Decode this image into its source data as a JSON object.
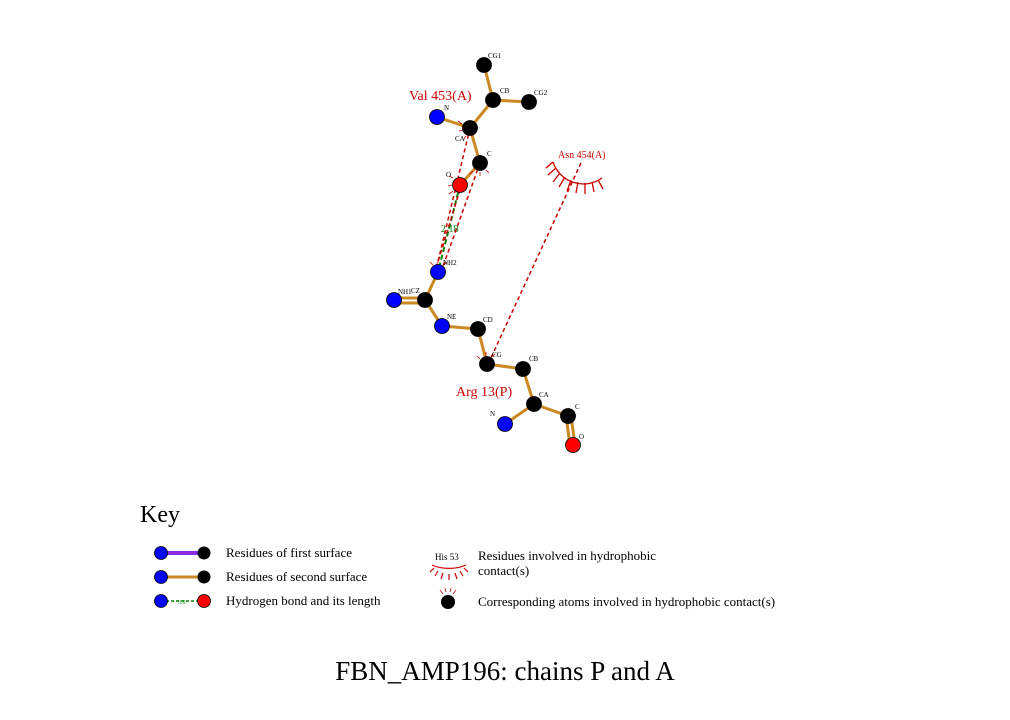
{
  "colors": {
    "carbon": "#000000",
    "nitrogen": "#0000ff",
    "oxygen": "#ff0000",
    "bond_second": "#cc8822",
    "bond_first": "#8a2be2",
    "hydrophobic": "#cc0000",
    "hbond": "#008000"
  },
  "residues": {
    "val": "Val 453(A)",
    "asn": "Asn 454(A)",
    "arg": "Arg 13(P)"
  },
  "atoms": {
    "val_cg1": "CG1",
    "val_cb": "CB",
    "val_cg2": "CG2",
    "val_n": "N",
    "val_ca": "CA",
    "val_c": "C",
    "val_o": "O",
    "arg_nh2": "NH2",
    "arg_nh1": "NH1",
    "arg_cz": "CZ",
    "arg_ne": "NE",
    "arg_cd": "CD",
    "arg_cg": "CG",
    "arg_cb": "CB",
    "arg_ca": "CA",
    "arg_c": "C",
    "arg_n": "N",
    "arg_o": "O"
  },
  "hbond_length": "2.18",
  "key": {
    "title": "Key",
    "first_surface": "Residues of first surface",
    "second_surface": "Residues of second surface",
    "hbond": "Hydrogen bond and its length",
    "hbond_sample": "3.0",
    "hydrophobic_sample_residue": "His 53",
    "hydrophobic_line1": "Residues involved in hydrophobic",
    "hydrophobic_line2": "contact(s)",
    "hydrophobic_atoms": "Corresponding atoms involved in hydrophobic contact(s)"
  },
  "caption": "FBN_AMP196: chains P and A"
}
